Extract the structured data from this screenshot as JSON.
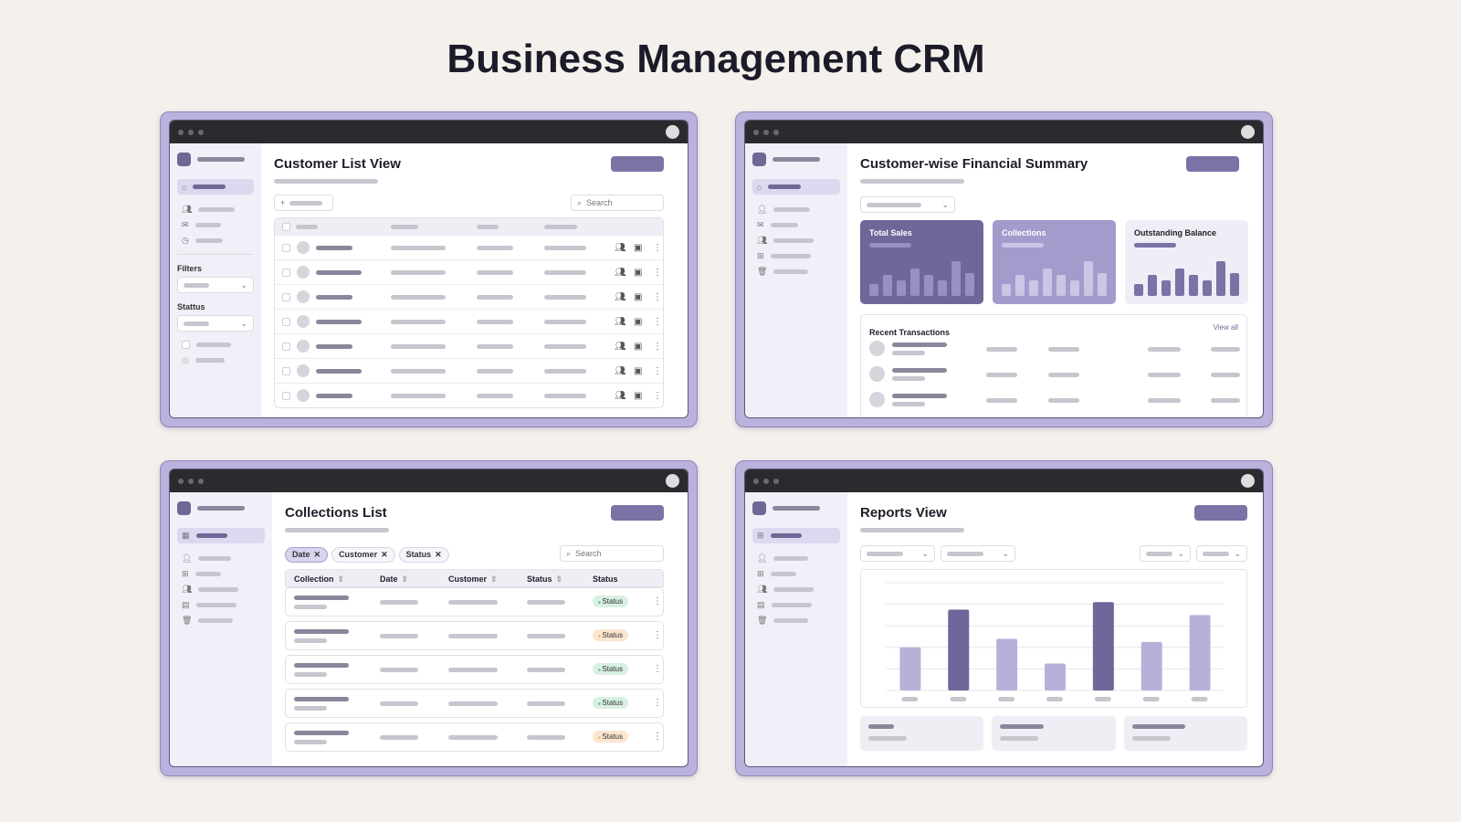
{
  "page_title": "Business Management CRM",
  "colors": {
    "accent": "#6f6896",
    "frame": "#bab2dc",
    "titlebar": "#2b2a2e",
    "green_badge": "#d8f0e2",
    "orange_badge": "#fbe6cf"
  },
  "customer_list": {
    "title": "Customer List View",
    "search_placeholder": "Search",
    "filters_label": "Filters",
    "status_label": "Stattus",
    "row_count": 7,
    "row_icons": [
      "users-icon",
      "document-icon",
      "more-vertical-icon"
    ],
    "sidebar_icons": [
      "home-icon",
      "users-icon",
      "mail-icon",
      "clock-icon"
    ]
  },
  "financial_summary": {
    "title": "Customer-wise Financial Summary",
    "cards": [
      {
        "label": "Total Sales",
        "bars": [
          0.35,
          0.6,
          0.45,
          0.8,
          0.6,
          0.45,
          1,
          0.65
        ]
      },
      {
        "label": "Collections",
        "bars": [
          0.35,
          0.6,
          0.45,
          0.8,
          0.6,
          0.45,
          1,
          0.65
        ]
      },
      {
        "label": "Outstanding Balance",
        "bars": [
          0.35,
          0.6,
          0.45,
          0.8,
          0.6,
          0.45,
          1,
          0.65
        ]
      }
    ],
    "recent_title": "Recent Transactions",
    "view_all": "View all",
    "sidebar_icons": [
      "home-icon",
      "user-icon",
      "mail-icon",
      "users-icon",
      "layout-icon",
      "trash-icon"
    ]
  },
  "collections_list": {
    "title": "Collections List",
    "chips": [
      "Date",
      "Customer",
      "Status"
    ],
    "search_placeholder": "Search",
    "columns": [
      "Collection",
      "Date",
      "Customer",
      "Status",
      "Status"
    ],
    "rows": [
      {
        "status": "Status",
        "tone": "green"
      },
      {
        "status": "Status",
        "tone": "orange"
      },
      {
        "status": "Status",
        "tone": "green"
      },
      {
        "status": "Status",
        "tone": "green"
      },
      {
        "status": "Status",
        "tone": "orange"
      }
    ]
  },
  "reports": {
    "title": "Reports View",
    "chart_bars": [
      {
        "value": 40,
        "emphasis": false
      },
      {
        "value": 75,
        "emphasis": true
      },
      {
        "value": 48,
        "emphasis": false
      },
      {
        "value": 25,
        "emphasis": false
      },
      {
        "value": 82,
        "emphasis": true
      },
      {
        "value": 45,
        "emphasis": false
      },
      {
        "value": 70,
        "emphasis": false
      }
    ]
  }
}
